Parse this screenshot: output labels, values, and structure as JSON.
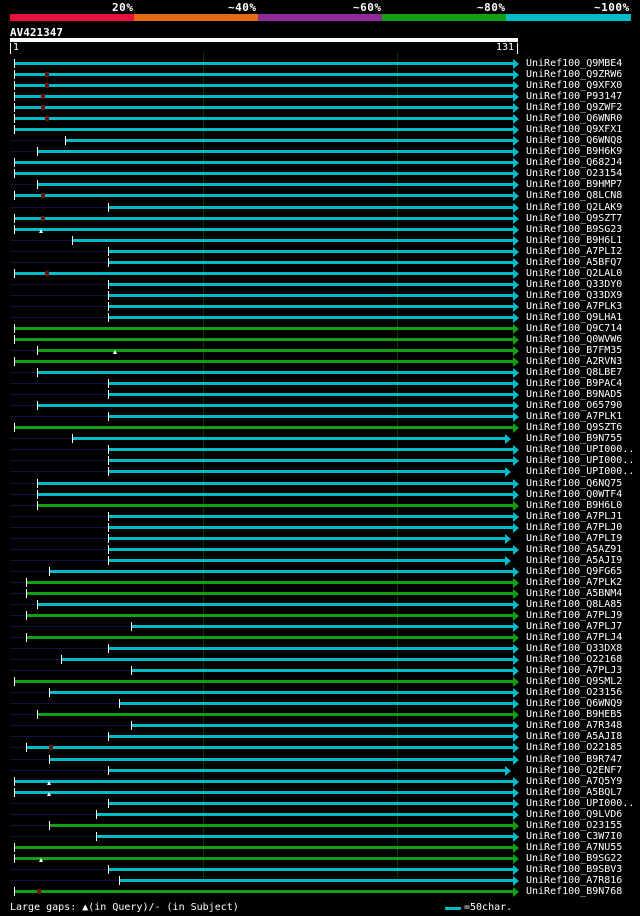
{
  "legend": {
    "labels": [
      "20%",
      "~40%",
      "~60%",
      "~80%",
      "~100%"
    ],
    "colors": [
      "#e8103c",
      "#e66a12",
      "#8e2a9a",
      "#12a012",
      "#00bcc8"
    ]
  },
  "query": {
    "id": "AV421347",
    "start": "1",
    "end": "131",
    "length": 131
  },
  "footer": {
    "gaps_text": "Large gaps: ▲(in Query)/- (in Subject)",
    "scale_text": "=50char."
  },
  "hits": [
    {
      "label": "UniRef100_Q9MBE4",
      "start": 2,
      "color": "c",
      "arrow": true,
      "mark": "none"
    },
    {
      "label": "UniRef100_Q9ZRW6",
      "start": 2,
      "color": "c",
      "arrow": true,
      "mark": "gap",
      "gap": 10
    },
    {
      "label": "UniRef100_Q9XFX0",
      "start": 2,
      "color": "c",
      "arrow": true,
      "mark": "gap",
      "gap": 10
    },
    {
      "label": "UniRef100_P93147",
      "start": 2,
      "color": "c",
      "arrow": true,
      "mark": "gap",
      "gap": 9
    },
    {
      "label": "UniRef100_Q9ZWF2",
      "start": 2,
      "color": "c",
      "arrow": true,
      "mark": "gap",
      "gap": 9
    },
    {
      "label": "UniRef100_Q6WNR0",
      "start": 2,
      "color": "c",
      "arrow": true,
      "mark": "gap",
      "gap": 10
    },
    {
      "label": "UniRef100_Q9XFX1",
      "start": 2,
      "color": "c",
      "arrow": true,
      "mark": "none"
    },
    {
      "label": "UniRef100_Q6WNQ8",
      "start": 15,
      "color": "c",
      "arrow": true,
      "mark": "none"
    },
    {
      "label": "UniRef100_B9H6K9",
      "start": 8,
      "color": "c",
      "arrow": true,
      "mark": "none"
    },
    {
      "label": "UniRef100_Q682J4",
      "start": 2,
      "color": "c",
      "arrow": true,
      "mark": "none"
    },
    {
      "label": "UniRef100_O23154",
      "start": 2,
      "color": "c",
      "arrow": true,
      "mark": "none"
    },
    {
      "label": "UniRef100_B9HMP7",
      "start": 8,
      "color": "c",
      "arrow": true,
      "mark": "none"
    },
    {
      "label": "UniRef100_Q8LCN8",
      "start": 2,
      "color": "c",
      "arrow": true,
      "mark": "gap",
      "gap": 9
    },
    {
      "label": "UniRef100_Q2LAK9",
      "start": 26,
      "color": "c",
      "arrow": true,
      "mark": "none"
    },
    {
      "label": "UniRef100_Q9SZT7",
      "start": 2,
      "color": "c",
      "arrow": true,
      "mark": "gap",
      "gap": 9
    },
    {
      "label": "UniRef100_B9SG23",
      "start": 2,
      "color": "c",
      "arrow": true,
      "mark": "tri",
      "gap": 9
    },
    {
      "label": "UniRef100_B9H6L1",
      "start": 17,
      "color": "c",
      "arrow": true,
      "mark": "none"
    },
    {
      "label": "UniRef100_A7PLI2",
      "start": 26,
      "color": "c",
      "arrow": true,
      "mark": "none"
    },
    {
      "label": "UniRef100_A5BFQ7",
      "start": 26,
      "color": "c",
      "arrow": true,
      "mark": "none"
    },
    {
      "label": "UniRef100_Q2LAL0",
      "start": 2,
      "color": "c",
      "arrow": true,
      "mark": "gap",
      "gap": 10
    },
    {
      "label": "UniRef100_Q33DY0",
      "start": 26,
      "color": "c",
      "arrow": true,
      "mark": "none"
    },
    {
      "label": "UniRef100_Q33DX9",
      "start": 26,
      "color": "c",
      "arrow": true,
      "mark": "none"
    },
    {
      "label": "UniRef100_A7PLK3",
      "start": 26,
      "color": "c",
      "arrow": true,
      "mark": "none"
    },
    {
      "label": "UniRef100_Q9LHA1",
      "start": 26,
      "color": "c",
      "arrow": true,
      "mark": "none"
    },
    {
      "label": "UniRef100_Q9C714",
      "start": 2,
      "color": "g",
      "arrow": true,
      "mark": "none"
    },
    {
      "label": "UniRef100_Q0WVW6",
      "start": 2,
      "color": "g",
      "arrow": true,
      "mark": "none"
    },
    {
      "label": "UniRef100_B7FM35",
      "start": 8,
      "color": "g",
      "arrow": true,
      "mark": "tri",
      "gap": 28
    },
    {
      "label": "UniRef100_A2RVN3",
      "start": 2,
      "color": "g",
      "arrow": true,
      "mark": "none"
    },
    {
      "label": "UniRef100_Q8LBE7",
      "start": 8,
      "color": "c",
      "arrow": true,
      "mark": "none"
    },
    {
      "label": "UniRef100_B9PAC4",
      "start": 26,
      "color": "c",
      "arrow": true,
      "mark": "none"
    },
    {
      "label": "UniRef100_B9NAD5",
      "start": 26,
      "color": "c",
      "arrow": true,
      "mark": "none"
    },
    {
      "label": "UniRef100_O65790",
      "start": 8,
      "color": "c",
      "arrow": true,
      "mark": "none"
    },
    {
      "label": "UniRef100_A7PLK1",
      "start": 26,
      "color": "c",
      "arrow": true,
      "mark": "none"
    },
    {
      "label": "UniRef100_Q9SZT6",
      "start": 2,
      "color": "g",
      "arrow": true,
      "mark": "none"
    },
    {
      "label": "UniRef100_B9N755",
      "start": 17,
      "color": "c",
      "arrow": true,
      "end": 129,
      "mark": "none"
    },
    {
      "label": "UniRef100_UPI000..",
      "start": 26,
      "color": "c",
      "arrow": true,
      "mark": "none"
    },
    {
      "label": "UniRef100_UPI000..",
      "start": 26,
      "color": "c",
      "arrow": true,
      "mark": "none"
    },
    {
      "label": "UniRef100_UPI000..",
      "start": 26,
      "color": "c",
      "arrow": true,
      "end": 129,
      "mark": "none"
    },
    {
      "label": "UniRef100_Q6NQ75",
      "start": 8,
      "color": "c",
      "arrow": true,
      "mark": "none"
    },
    {
      "label": "UniRef100_Q0WTF4",
      "start": 8,
      "color": "c",
      "arrow": true,
      "mark": "none"
    },
    {
      "label": "UniRef100_B9H6L0",
      "start": 8,
      "color": "g",
      "arrow": true,
      "mark": "none"
    },
    {
      "label": "UniRef100_A7PLJ1",
      "start": 26,
      "color": "c",
      "arrow": true,
      "mark": "none"
    },
    {
      "label": "UniRef100_A7PLJ0",
      "start": 26,
      "color": "c",
      "arrow": true,
      "mark": "none"
    },
    {
      "label": "UniRef100_A7PLI9",
      "start": 26,
      "color": "c",
      "arrow": true,
      "end": 129,
      "mark": "none"
    },
    {
      "label": "UniRef100_A5AZ91",
      "start": 26,
      "color": "c",
      "arrow": true,
      "mark": "none"
    },
    {
      "label": "UniRef100_A5AJI9",
      "start": 26,
      "color": "c",
      "arrow": true,
      "end": 129,
      "mark": "none"
    },
    {
      "label": "UniRef100_Q9FG65",
      "start": 11,
      "color": "c",
      "arrow": true,
      "mark": "none"
    },
    {
      "label": "UniRef100_A7PLK2",
      "start": 5,
      "color": "g",
      "arrow": true,
      "mark": "none"
    },
    {
      "label": "UniRef100_A5BNM4",
      "start": 5,
      "color": "g",
      "arrow": true,
      "mark": "none"
    },
    {
      "label": "UniRef100_Q8LA85",
      "start": 8,
      "color": "c",
      "arrow": true,
      "mark": "none"
    },
    {
      "label": "UniRef100_A7PLJ9",
      "start": 5,
      "color": "g",
      "arrow": true,
      "mark": "none"
    },
    {
      "label": "UniRef100_A7PLJ7",
      "start": 32,
      "color": "c",
      "arrow": true,
      "mark": "none"
    },
    {
      "label": "UniRef100_A7PLJ4",
      "start": 5,
      "color": "g",
      "arrow": true,
      "mark": "none"
    },
    {
      "label": "UniRef100_Q33DX8",
      "start": 26,
      "color": "c",
      "arrow": true,
      "mark": "none"
    },
    {
      "label": "UniRef100_O22168",
      "start": 14,
      "color": "c",
      "arrow": true,
      "mark": "none"
    },
    {
      "label": "UniRef100_A7PLJ3",
      "start": 32,
      "color": "c",
      "arrow": true,
      "mark": "none"
    },
    {
      "label": "UniRef100_Q9SML2",
      "start": 2,
      "color": "g",
      "arrow": true,
      "mark": "none"
    },
    {
      "label": "UniRef100_O23156",
      "start": 11,
      "color": "c",
      "arrow": true,
      "mark": "none"
    },
    {
      "label": "UniRef100_Q6WNQ9",
      "start": 29,
      "color": "c",
      "arrow": true,
      "mark": "none"
    },
    {
      "label": "UniRef100_B9HEB5",
      "start": 8,
      "color": "g",
      "arrow": true,
      "mark": "none"
    },
    {
      "label": "UniRef100_A7R348",
      "start": 32,
      "color": "c",
      "arrow": true,
      "mark": "none"
    },
    {
      "label": "UniRef100_A5AJI8",
      "start": 26,
      "color": "c",
      "arrow": true,
      "mark": "none"
    },
    {
      "label": "UniRef100_O22185",
      "start": 5,
      "color": "c",
      "arrow": true,
      "mark": "gap",
      "gap": 11
    },
    {
      "label": "UniRef100_B9R747",
      "start": 11,
      "color": "c",
      "arrow": true,
      "mark": "none"
    },
    {
      "label": "UniRef100_Q2ENF7",
      "start": 26,
      "color": "c",
      "arrow": true,
      "end": 129,
      "mark": "none"
    },
    {
      "label": "UniRef100_A7Q5Y9",
      "start": 2,
      "color": "c",
      "arrow": true,
      "mark": "tri",
      "gap": 11
    },
    {
      "label": "UniRef100_A5BQL7",
      "start": 2,
      "color": "c",
      "arrow": true,
      "mark": "tri",
      "gap": 11
    },
    {
      "label": "UniRef100_UPI000..",
      "start": 26,
      "color": "c",
      "arrow": true,
      "mark": "none"
    },
    {
      "label": "UniRef100_Q9LVD6",
      "start": 23,
      "color": "c",
      "arrow": true,
      "mark": "none"
    },
    {
      "label": "UniRef100_O23155",
      "start": 11,
      "color": "g",
      "arrow": true,
      "mark": "none"
    },
    {
      "label": "UniRef100_C3W7I0",
      "start": 23,
      "color": "c",
      "arrow": true,
      "mark": "none"
    },
    {
      "label": "UniRef100_A7NU55",
      "start": 2,
      "color": "g",
      "arrow": true,
      "mark": "none"
    },
    {
      "label": "UniRef100_B9SG22",
      "start": 2,
      "color": "g",
      "arrow": true,
      "mark": "tri",
      "gap": 9
    },
    {
      "label": "UniRef100_B9SBV3",
      "start": 26,
      "color": "c",
      "arrow": true,
      "mark": "none"
    },
    {
      "label": "UniRef100_A7R816",
      "start": 29,
      "color": "c",
      "arrow": true,
      "mark": "none"
    },
    {
      "label": "UniRef100_B9N768",
      "start": 2,
      "color": "g",
      "arrow": true,
      "mark": "gap",
      "gap": 8
    }
  ]
}
